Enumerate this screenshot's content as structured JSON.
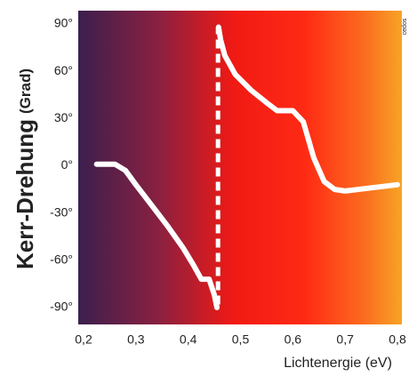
{
  "chart_data": {
    "type": "line",
    "ylabel": "Kerr-Drehung",
    "ylabel_unit": "(Grad)",
    "xlabel": "Lichtenergie (eV)",
    "credit": "cedos",
    "x": [
      0.225,
      0.26,
      0.28,
      0.3,
      0.33,
      0.36,
      0.39,
      0.41,
      0.425,
      0.44,
      0.45,
      0.455,
      null,
      0.458,
      0.462,
      0.47,
      0.49,
      0.52,
      0.55,
      0.57,
      0.6,
      0.62,
      0.64,
      0.66,
      0.68,
      0.7,
      0.75,
      0.8
    ],
    "series": [
      {
        "color": "#ffffff",
        "values": [
          1,
          1,
          -3,
          -12,
          -25,
          -38,
          -52,
          -63,
          -72,
          -72,
          -82,
          -90,
          null,
          88,
          80,
          70,
          58,
          48,
          40,
          35,
          35,
          28,
          5,
          -10,
          -15,
          -16,
          -14,
          -12
        ]
      },
      {
        "color": "#ffffff",
        "dashed": true,
        "x": [
          0.457,
          0.457
        ],
        "values": [
          -88,
          88
        ]
      }
    ],
    "xlim": [
      0.2,
      0.8
    ],
    "ylim": [
      -90,
      90
    ],
    "xticks": [
      {
        "value": 0.2,
        "label": "0,2"
      },
      {
        "value": 0.3,
        "label": "0,3"
      },
      {
        "value": 0.4,
        "label": "0,4"
      },
      {
        "value": 0.5,
        "label": "0,5"
      },
      {
        "value": 0.6,
        "label": "0,6"
      },
      {
        "value": 0.7,
        "label": "0,7"
      },
      {
        "value": 0.8,
        "label": "0,8"
      }
    ],
    "yticks": [
      {
        "value": -90,
        "label": "-90°"
      },
      {
        "value": -60,
        "label": "-60°"
      },
      {
        "value": -30,
        "label": "-30°"
      },
      {
        "value": 0,
        "label": "0°"
      },
      {
        "value": 30,
        "label": "30°"
      },
      {
        "value": 60,
        "label": "60°"
      },
      {
        "value": 90,
        "label": "90°"
      }
    ]
  }
}
